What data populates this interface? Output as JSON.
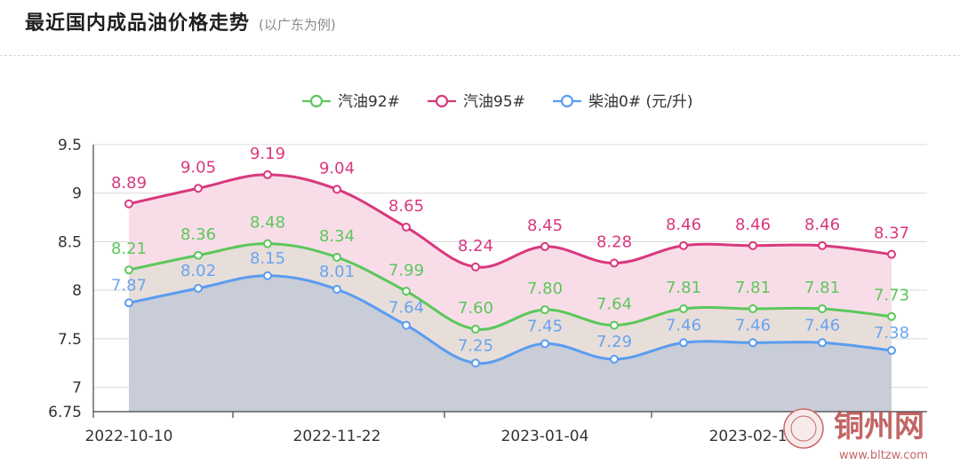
{
  "header": {
    "title": "最近国内成品油价格走势",
    "subtitle": "(以广东为例)"
  },
  "watermark": {
    "name": "铜州网",
    "url": "www.bltzw.com"
  },
  "colors": {
    "gas92": "#5cc75a",
    "gas95": "#d9387e",
    "diesel0": "#5b9cf0",
    "fill95": "#f8dde9",
    "fill92": "#e6ddd9",
    "fill0": "#c6cbd8"
  },
  "chart_data": {
    "type": "area",
    "x": [
      "2022-10-10",
      "",
      "",
      "2022-11-22",
      "",
      "",
      "2023-01-04",
      "",
      "",
      "2023-02-17",
      "",
      ""
    ],
    "xtick_labels": [
      "2022-10-10",
      "2022-11-22",
      "2023-01-04",
      "2023-02-17"
    ],
    "series": [
      {
        "name": "汽油92#",
        "color": "#5cc75a",
        "values": [
          8.21,
          8.36,
          8.48,
          8.34,
          7.99,
          7.6,
          7.8,
          7.64,
          7.81,
          7.81,
          7.81,
          7.73
        ],
        "labels": [
          "8.21",
          "8.36",
          "8.48",
          "8.34",
          "7.99",
          "7.60",
          "7.80",
          "7.64",
          "7.81",
          "7.81",
          "7.81",
          "7.73"
        ]
      },
      {
        "name": "汽油95#",
        "color": "#d9387e",
        "values": [
          8.89,
          9.05,
          9.19,
          9.04,
          8.65,
          8.24,
          8.45,
          8.28,
          8.46,
          8.46,
          8.46,
          8.37
        ],
        "labels": [
          "8.89",
          "9.05",
          "9.19",
          "9.04",
          "8.65",
          "8.24",
          "8.45",
          "8.28",
          "8.46",
          "8.46",
          "8.46",
          "8.37"
        ]
      },
      {
        "name": "柴油0#",
        "color": "#5b9cf0",
        "values": [
          7.87,
          8.02,
          8.15,
          8.01,
          7.64,
          7.25,
          7.45,
          7.29,
          7.46,
          7.46,
          7.46,
          7.38
        ],
        "labels": [
          "7.87",
          "8.02",
          "8.15",
          "8.01",
          "7.64",
          "7.25",
          "7.45",
          "7.29",
          "7.46",
          "7.46",
          "7.46",
          "7.38"
        ]
      }
    ],
    "unit": "(元/升)",
    "ylim": [
      6.75,
      9.5
    ],
    "yticks": [
      "9.5",
      "9",
      "8.5",
      "8",
      "7.5",
      "7",
      "6.75"
    ],
    "ytick_values": [
      9.5,
      9,
      8.5,
      8,
      7.5,
      7,
      6.75
    ],
    "grid": true,
    "legend_position": "top-center",
    "smooth": true
  }
}
